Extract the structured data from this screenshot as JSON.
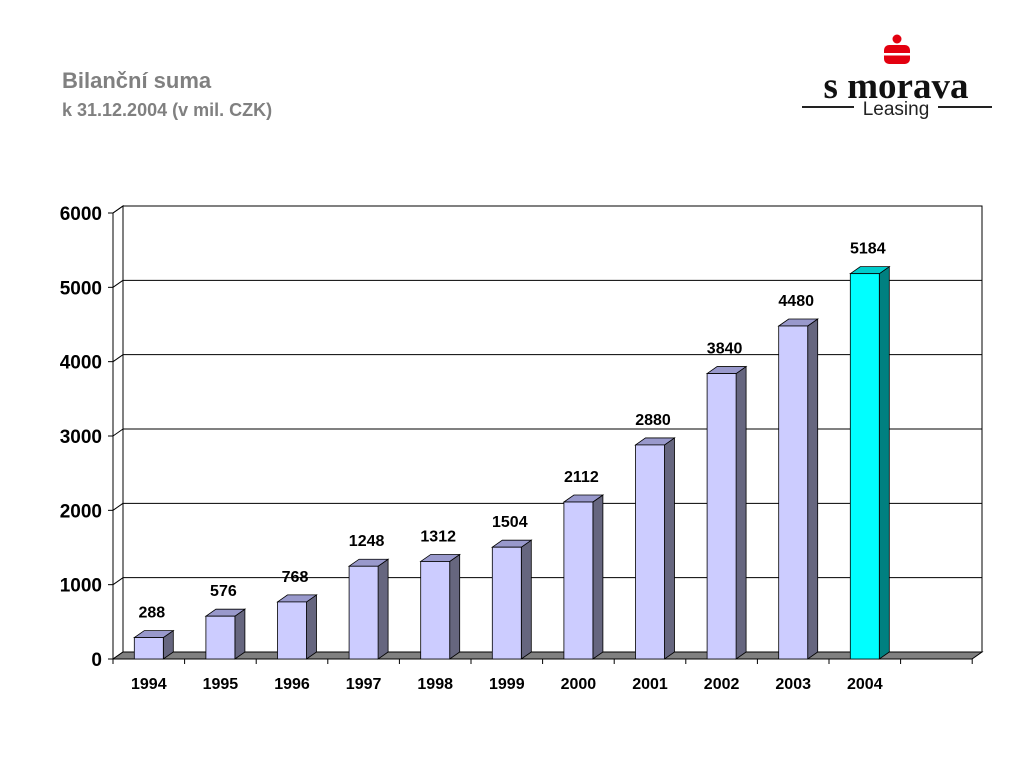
{
  "header": {
    "title": "Bilanční suma",
    "subtitle": "k 31.12.2004 (v mil. CZK)"
  },
  "logo": {
    "brand": "s morava",
    "sub": "Leasing",
    "icon": "sparkasse-s-icon",
    "color": "#e3000f"
  },
  "colors": {
    "bar_front": "#ccccff",
    "bar_side": "#66667f",
    "bar_top": "#9999cc",
    "highlight_front": "#00ffff",
    "highlight_side": "#008080",
    "highlight_top": "#00cccc",
    "floor": "#808080"
  },
  "chart_data": {
    "type": "bar",
    "title": "",
    "xlabel": "",
    "ylabel": "",
    "categories": [
      "1994",
      "1995",
      "1996",
      "1997",
      "1998",
      "1999",
      "2000",
      "2001",
      "2002",
      "2003",
      "2004"
    ],
    "values": [
      288,
      576,
      768,
      1248,
      1312,
      1504,
      2112,
      2880,
      3840,
      4480,
      5184
    ],
    "data_labels": [
      "288",
      "576",
      "768",
      "1248",
      "1312",
      "1504",
      "2112",
      "2880",
      "3840",
      "4480",
      "5184"
    ],
    "highlight_category": "2004",
    "ylim": [
      0,
      6000
    ],
    "yticks": [
      "0",
      "1000",
      "2000",
      "3000",
      "4000",
      "5000",
      "6000"
    ],
    "grid": true,
    "legend": "none",
    "style": "3d"
  }
}
